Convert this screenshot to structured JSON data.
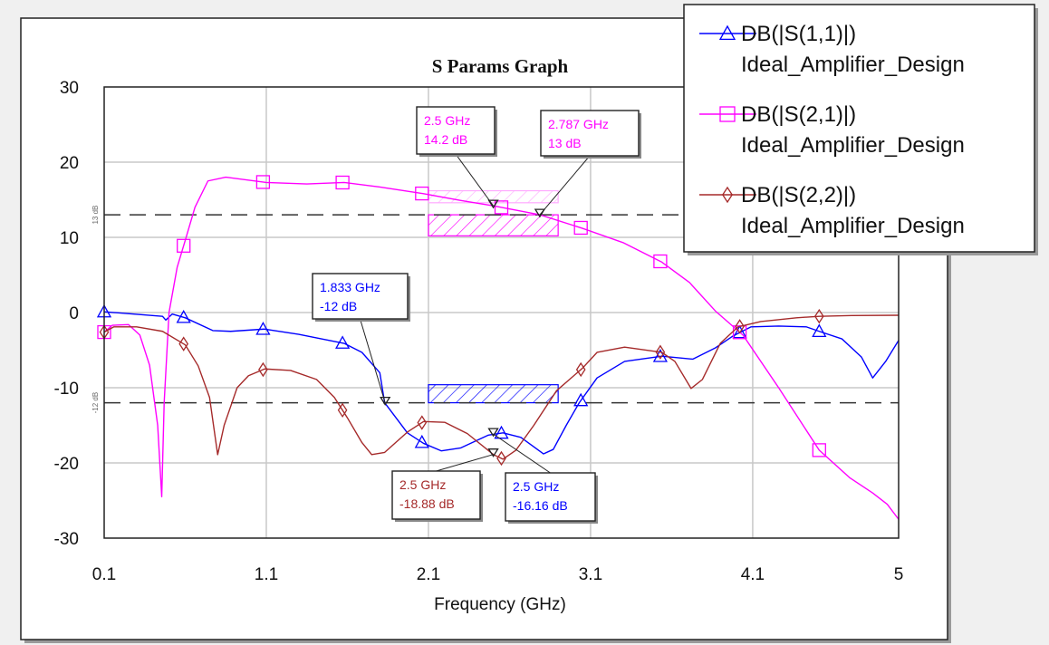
{
  "chart_data": {
    "type": "line",
    "title": "S Params Graph",
    "xlabel": "Frequency (GHz)",
    "ylabel": "",
    "xlim": [
      0.1,
      5
    ],
    "ylim": [
      -30,
      30
    ],
    "x_ticks": [
      "0.1",
      "1.1",
      "2.1",
      "3.1",
      "4.1",
      "5"
    ],
    "y_ticks": [
      "30",
      "20",
      "10",
      "0",
      "-10",
      "-20",
      "-30"
    ],
    "grid": true,
    "legend_placement": "top-right",
    "series": [
      {
        "name": "DB(|S(1,1)|)",
        "name2": "Ideal_Amplifier_Design",
        "color": "#0000ff",
        "marker": "triangle",
        "points": [
          [
            0.1,
            0.1
          ],
          [
            0.46,
            -0.5
          ],
          [
            0.48,
            -1
          ],
          [
            0.52,
            -0.2
          ],
          [
            0.6,
            -0.7
          ],
          [
            0.77,
            -2.4
          ],
          [
            0.88,
            -2.5
          ],
          [
            1.09,
            -2.2
          ],
          [
            1.3,
            -2.9
          ],
          [
            1.58,
            -4.1
          ],
          [
            1.69,
            -5.3
          ],
          [
            1.8,
            -8
          ],
          [
            1.83,
            -12
          ],
          [
            1.97,
            -16
          ],
          [
            2.07,
            -17.4
          ],
          [
            2.18,
            -18.4
          ],
          [
            2.3,
            -18
          ],
          [
            2.47,
            -16.3
          ],
          [
            2.56,
            -16
          ],
          [
            2.67,
            -16.6
          ],
          [
            2.81,
            -18.8
          ],
          [
            2.87,
            -18.2
          ],
          [
            2.95,
            -15
          ],
          [
            3.03,
            -12
          ],
          [
            3.14,
            -8.7
          ],
          [
            3.31,
            -6.5
          ],
          [
            3.54,
            -5.8
          ],
          [
            3.73,
            -6.2
          ],
          [
            3.87,
            -4.7
          ],
          [
            3.98,
            -3.1
          ],
          [
            4.09,
            -1.9
          ],
          [
            4.26,
            -1.8
          ],
          [
            4.43,
            -1.9
          ],
          [
            4.51,
            -2.5
          ],
          [
            4.65,
            -3.5
          ],
          [
            4.77,
            -5.9
          ],
          [
            4.84,
            -8.7
          ],
          [
            4.92,
            -6.5
          ],
          [
            5.0,
            -3.7
          ]
        ]
      },
      {
        "name": "DB(|S(2,1)|)",
        "name2": "Ideal_Amplifier_Design",
        "color": "#ff00ff",
        "marker": "square",
        "points": [
          [
            0.1,
            -2.6
          ],
          [
            0.15,
            -1.7
          ],
          [
            0.25,
            -1.6
          ],
          [
            0.32,
            -3
          ],
          [
            0.38,
            -7
          ],
          [
            0.43,
            -15
          ],
          [
            0.455,
            -24.5
          ],
          [
            0.47,
            -12
          ],
          [
            0.5,
            0
          ],
          [
            0.55,
            6
          ],
          [
            0.6,
            9.6
          ],
          [
            0.66,
            14
          ],
          [
            0.74,
            17.5
          ],
          [
            0.85,
            18
          ],
          [
            1.1,
            17.3
          ],
          [
            1.35,
            17.1
          ],
          [
            1.58,
            17.3
          ],
          [
            1.8,
            16.7
          ],
          [
            2.07,
            15.8
          ],
          [
            2.3,
            14.9
          ],
          [
            2.5,
            14.2
          ],
          [
            2.787,
            13
          ],
          [
            3.05,
            11.2
          ],
          [
            3.3,
            9.3
          ],
          [
            3.54,
            6.7
          ],
          [
            3.71,
            4
          ],
          [
            3.87,
            0.2
          ],
          [
            4.04,
            -3
          ],
          [
            4.26,
            -10
          ],
          [
            4.51,
            -18.3
          ],
          [
            4.7,
            -22
          ],
          [
            4.84,
            -24
          ],
          [
            4.93,
            -25.5
          ],
          [
            5.0,
            -27.5
          ]
        ]
      },
      {
        "name": "DB(|S(2,2)|)",
        "name2": "Ideal_Amplifier_Design",
        "color": "#a52a2a",
        "marker": "diamond",
        "points": [
          [
            0.1,
            -2.6
          ],
          [
            0.16,
            -1.9
          ],
          [
            0.3,
            -1.9
          ],
          [
            0.46,
            -2.5
          ],
          [
            0.6,
            -4.3
          ],
          [
            0.68,
            -7.1
          ],
          [
            0.75,
            -11.3
          ],
          [
            0.8,
            -18.9
          ],
          [
            0.84,
            -15
          ],
          [
            0.92,
            -10
          ],
          [
            0.99,
            -8.4
          ],
          [
            1.09,
            -7.5
          ],
          [
            1.25,
            -7.7
          ],
          [
            1.41,
            -8.9
          ],
          [
            1.52,
            -11.3
          ],
          [
            1.6,
            -14
          ],
          [
            1.69,
            -17.3
          ],
          [
            1.75,
            -18.9
          ],
          [
            1.83,
            -18.6
          ],
          [
            1.97,
            -15.9
          ],
          [
            2.07,
            -14.5
          ],
          [
            2.2,
            -14.6
          ],
          [
            2.34,
            -16.1
          ],
          [
            2.5,
            -18.88
          ],
          [
            2.56,
            -19.5
          ],
          [
            2.64,
            -18.3
          ],
          [
            2.75,
            -15
          ],
          [
            2.89,
            -10.4
          ],
          [
            3.05,
            -7.4
          ],
          [
            3.14,
            -5.3
          ],
          [
            3.31,
            -4.6
          ],
          [
            3.54,
            -5.3
          ],
          [
            3.62,
            -6.5
          ],
          [
            3.72,
            -10.1
          ],
          [
            3.79,
            -8.9
          ],
          [
            3.9,
            -4.1
          ],
          [
            4.01,
            -1.9
          ],
          [
            4.15,
            -1.2
          ],
          [
            4.37,
            -0.7
          ],
          [
            4.51,
            -0.5
          ],
          [
            4.71,
            -0.4
          ],
          [
            5.0,
            -0.36
          ]
        ]
      }
    ],
    "limit_lines": [
      {
        "value": 13,
        "label": "13 dB"
      },
      {
        "value": -12,
        "label": "-12 dB"
      }
    ],
    "goals": [
      {
        "series": 1,
        "x": [
          2.1,
          2.9
        ],
        "y": [
          10.2,
          13
        ],
        "color": "#ff00ff"
      },
      {
        "series": 1,
        "x": [
          2.1,
          2.9
        ],
        "y": [
          14.6,
          16.2
        ],
        "color": "#ffaaff"
      },
      {
        "series": 0,
        "x": [
          2.1,
          2.9
        ],
        "y": [
          -12,
          -9.6
        ],
        "color": "#0000ff"
      }
    ],
    "markers": [
      {
        "series": 1,
        "x": 2.5,
        "y": 14.2,
        "line1": "2.5 GHz",
        "line2": "14.2 dB",
        "color": "#ff00ff"
      },
      {
        "series": 1,
        "x": 2.787,
        "y": 13,
        "line1": "2.787 GHz",
        "line2": "13 dB",
        "color": "#ff00ff"
      },
      {
        "series": 0,
        "x": 1.833,
        "y": -12,
        "line1": "1.833 GHz",
        "line2": "-12 dB",
        "color": "#0000ff"
      },
      {
        "series": 2,
        "x": 2.5,
        "y": -18.88,
        "line1": "2.5 GHz",
        "line2": "-18.88 dB",
        "color": "#a52a2a"
      },
      {
        "series": 0,
        "x": 2.5,
        "y": -16.16,
        "line1": "2.5 GHz",
        "line2": "-16.16 dB",
        "color": "#0000ff"
      }
    ]
  }
}
